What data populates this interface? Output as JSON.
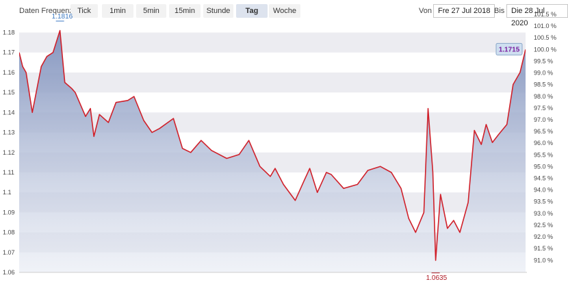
{
  "toolbar": {
    "frequency_label": "Daten Frequenz",
    "buttons": [
      "Tick",
      "1min",
      "5min",
      "15min",
      "Stunde",
      "Tag",
      "Woche"
    ],
    "active": "Tag",
    "from_label": "Von",
    "from_date": "Fre 27 Jul 2018",
    "to_label": "Bis",
    "to_date": "Die 28 Jul 2020"
  },
  "colors": {
    "line": "#d0202a",
    "area_top": "#7d8fbb",
    "area_bottom": "#e6eaf3",
    "band": "#ececf1",
    "max_label": "#3a78c2",
    "min_label": "#b01b26",
    "last_badge_bg": "#cfdff0",
    "last_badge_text": "#7a1fa0"
  },
  "chart_data": {
    "type": "area",
    "title": "",
    "xlabel": "",
    "ylabel": "",
    "x_range": [
      "2018-07-27",
      "2020-07-28"
    ],
    "ylim": [
      1.06,
      1.186
    ],
    "y_ticks": [
      "1.18",
      "1.17",
      "1.16",
      "1.15",
      "1.14",
      "1.13",
      "1.12",
      "1.11",
      "1.1",
      "1.09",
      "1.08",
      "1.07",
      "1.06"
    ],
    "y2_ticks": [
      "101.5 %",
      "101.0 %",
      "100.5 %",
      "100.0 %",
      "99.5 %",
      "99.0 %",
      "98.5 %",
      "98.0 %",
      "97.5 %",
      "97.0 %",
      "96.5 %",
      "96.0 %",
      "95.5 %",
      "95.0 %",
      "94.5 %",
      "94.0 %",
      "93.5 %",
      "93.0 %",
      "92.5 %",
      "92.0 %",
      "91.5 %",
      "91.0 %"
    ],
    "x": [
      "2018-07-27",
      "2018-08-01",
      "2018-08-06",
      "2018-08-15",
      "2018-08-28",
      "2018-09-05",
      "2018-09-14",
      "2018-09-24",
      "2018-10-01",
      "2018-10-11",
      "2018-10-16",
      "2018-10-31",
      "2018-11-07",
      "2018-11-12",
      "2018-11-20",
      "2018-12-03",
      "2018-12-14",
      "2018-12-31",
      "2019-01-09",
      "2019-01-23",
      "2019-02-04",
      "2019-02-15",
      "2019-03-07",
      "2019-03-20",
      "2019-04-01",
      "2019-04-16",
      "2019-05-01",
      "2019-05-23",
      "2019-06-10",
      "2019-06-24",
      "2019-07-10",
      "2019-07-25",
      "2019-08-01",
      "2019-08-13",
      "2019-08-30",
      "2019-09-12",
      "2019-09-20",
      "2019-10-01",
      "2019-10-14",
      "2019-10-21",
      "2019-11-08",
      "2019-11-28",
      "2019-12-13",
      "2019-12-31",
      "2020-01-16",
      "2020-01-30",
      "2020-02-10",
      "2020-02-20",
      "2020-03-03",
      "2020-03-09",
      "2020-03-16",
      "2020-03-20",
      "2020-03-27",
      "2020-04-06",
      "2020-04-15",
      "2020-04-24",
      "2020-05-06",
      "2020-05-15",
      "2020-05-25",
      "2020-06-01",
      "2020-06-10",
      "2020-06-19",
      "2020-07-01",
      "2020-07-10",
      "2020-07-20",
      "2020-07-28"
    ],
    "series": [
      {
        "values": [
          1.17,
          1.163,
          1.16,
          1.14,
          1.163,
          1.168,
          1.17,
          1.181,
          1.155,
          1.152,
          1.15,
          1.138,
          1.142,
          1.128,
          1.139,
          1.135,
          1.145,
          1.146,
          1.148,
          1.136,
          1.13,
          1.132,
          1.137,
          1.122,
          1.12,
          1.126,
          1.121,
          1.117,
          1.119,
          1.126,
          1.113,
          1.108,
          1.112,
          1.104,
          1.096,
          1.106,
          1.112,
          1.1,
          1.11,
          1.109,
          1.102,
          1.104,
          1.111,
          1.113,
          1.11,
          1.102,
          1.087,
          1.08,
          1.09,
          1.142,
          1.11,
          1.066,
          1.099,
          1.082,
          1.086,
          1.08,
          1.095,
          1.131,
          1.124,
          1.134,
          1.125,
          1.129,
          1.134,
          1.154,
          1.16,
          1.1715
        ]
      }
    ],
    "annotations": {
      "max": {
        "label": "1.1816",
        "x": "2018-09-24",
        "value": 1.1816
      },
      "min": {
        "label": "1.0635",
        "x": "2020-03-20",
        "value": 1.0635
      },
      "last": {
        "label": "1.1715",
        "x": "2020-07-28",
        "value": 1.1715
      }
    }
  }
}
